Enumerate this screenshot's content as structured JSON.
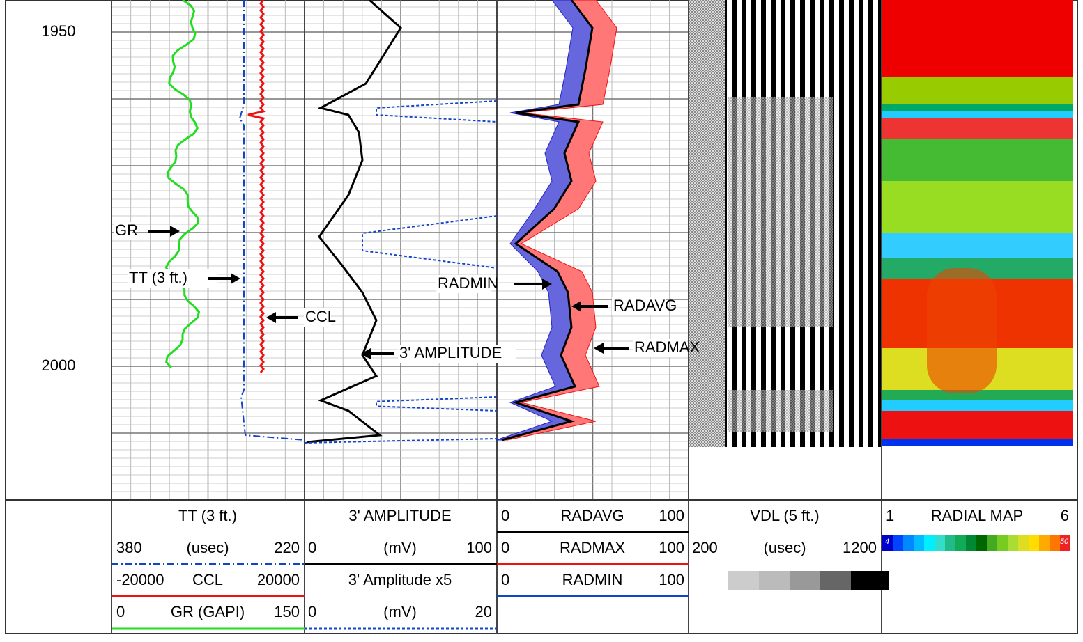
{
  "depth_labels": [
    "1950",
    "2000"
  ],
  "annotations": [
    "GR",
    "TT (3 ft.)",
    "CCL",
    "3'  AMPLITUDE",
    "RADMIN",
    "RADAVG",
    "RADMAX"
  ],
  "header_cells": [
    "TT (3 ft.)",
    "380",
    "(usec)",
    "220",
    "-20000",
    "CCL",
    "20000",
    "0",
    "GR (GAPI)",
    "150",
    "3'  AMPLITUDE",
    "0",
    "(mV)",
    "100",
    "3'  Amplitude  x5",
    "0",
    "(mV)",
    "20",
    "0",
    "RADAVG",
    "100",
    "0",
    "RADMAX",
    "100",
    "0",
    "RADMIN",
    "100",
    "VDL (5 ft.)",
    "200",
    "(usec)",
    "1200",
    "1",
    "RADIAL MAP",
    "6",
    "4",
    "50"
  ]
}
